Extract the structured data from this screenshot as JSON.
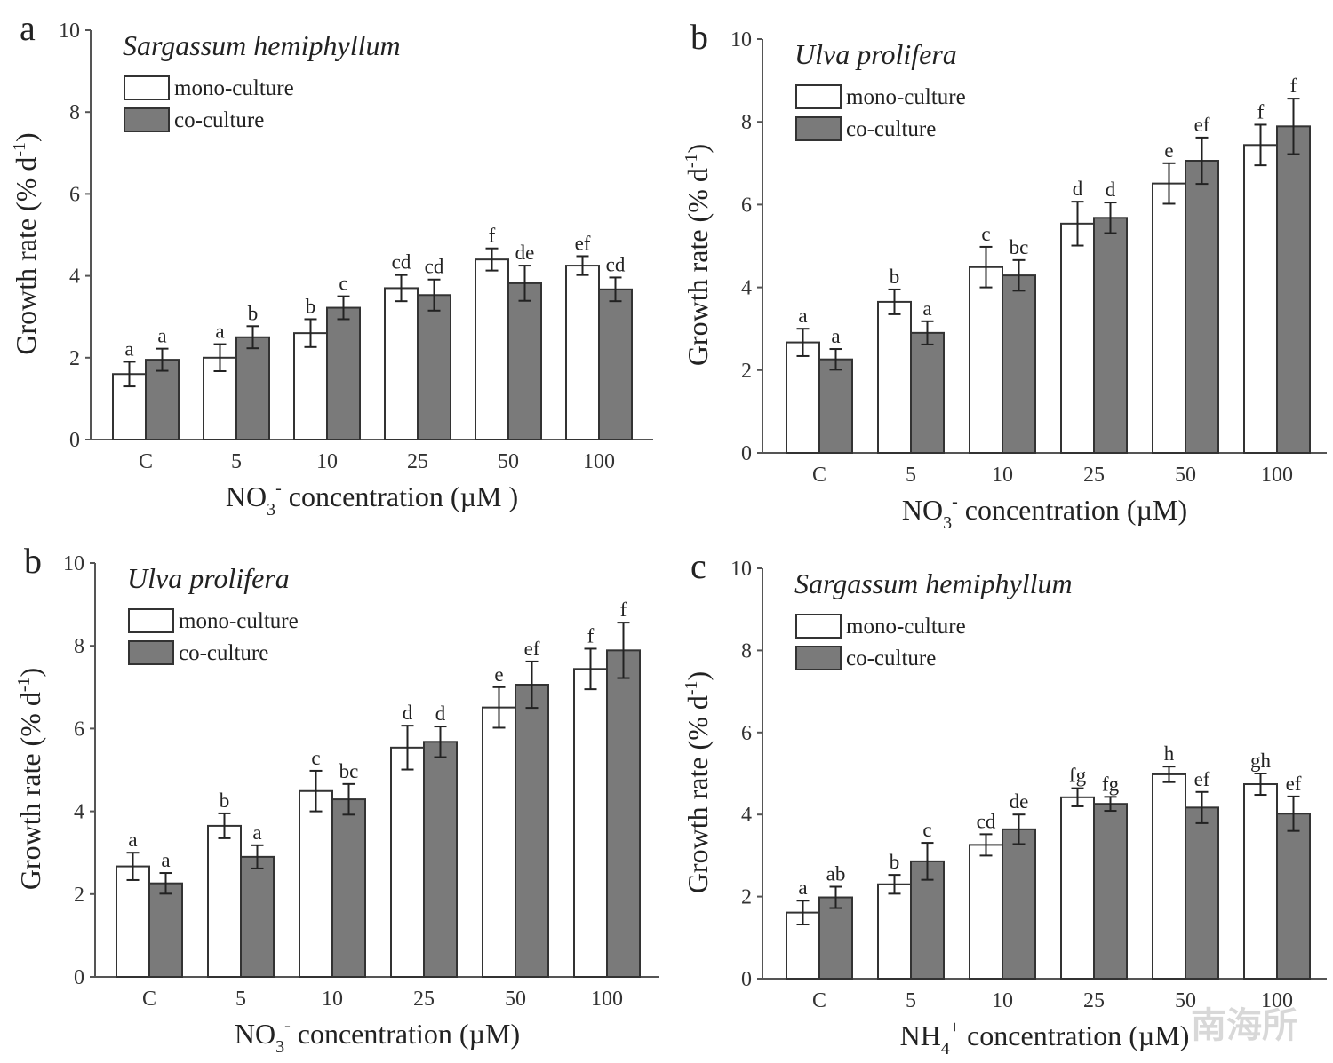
{
  "chart_data": [
    {
      "type": "bar",
      "panel": "a",
      "title": "Sargassum hemiphyllum",
      "xlabel": "NO3- concentration (µM )",
      "xlabel_parts": {
        "base": "NO",
        "sub": "3",
        "sup": "-",
        "rest": " concentration (µM )"
      },
      "ylabel": "Growth rate (% d-1)",
      "ylim": [
        0,
        10
      ],
      "yticks": [
        0,
        2,
        4,
        6,
        8,
        10
      ],
      "categories": [
        "C",
        "5",
        "10",
        "25",
        "50",
        "100"
      ],
      "legend_position": "top-left",
      "series": [
        {
          "name": "mono-culture",
          "color": "#ffffff",
          "values": [
            1.6,
            2.0,
            2.6,
            3.7,
            4.4,
            4.25
          ],
          "errors": [
            0.3,
            0.33,
            0.34,
            0.32,
            0.27,
            0.23
          ],
          "letters": [
            "a",
            "a",
            "b",
            "cd",
            "f",
            "ef"
          ]
        },
        {
          "name": "co-culture",
          "color": "#7a7a7a",
          "values": [
            1.95,
            2.5,
            3.22,
            3.53,
            3.82,
            3.67
          ],
          "errors": [
            0.27,
            0.27,
            0.28,
            0.38,
            0.43,
            0.29
          ],
          "letters": [
            "a",
            "b",
            "c",
            "cd",
            "de",
            "cd"
          ]
        }
      ]
    },
    {
      "type": "bar",
      "panel": "b",
      "title": "Ulva prolifera",
      "xlabel": "NO3- concentration (µM)",
      "xlabel_parts": {
        "base": "NO",
        "sub": "3",
        "sup": "-",
        "rest": " concentration (µM)"
      },
      "ylabel": "Growth rate (% d-1)",
      "ylim": [
        0,
        10
      ],
      "yticks": [
        0,
        2,
        4,
        6,
        8,
        10
      ],
      "categories": [
        "C",
        "5",
        "10",
        "25",
        "50",
        "100"
      ],
      "legend_position": "top-left",
      "series": [
        {
          "name": "mono-culture",
          "color": "#ffffff",
          "values": [
            2.67,
            3.65,
            4.49,
            5.54,
            6.51,
            7.44
          ],
          "errors": [
            0.33,
            0.3,
            0.49,
            0.53,
            0.49,
            0.49
          ],
          "letters": [
            "a",
            "b",
            "c",
            "d",
            "e",
            "f"
          ]
        },
        {
          "name": "co-culture",
          "color": "#7a7a7a",
          "values": [
            2.26,
            2.9,
            4.29,
            5.68,
            7.06,
            7.89
          ],
          "errors": [
            0.25,
            0.28,
            0.37,
            0.37,
            0.56,
            0.67
          ],
          "letters": [
            "a",
            "a",
            "bc",
            "d",
            "ef",
            "f"
          ]
        }
      ]
    },
    {
      "type": "bar",
      "panel": "b",
      "title": "Ulva prolifera",
      "xlabel": "NO3- concentration (µM)",
      "xlabel_parts": {
        "base": "NO",
        "sub": "3",
        "sup": "-",
        "rest": " concentration (µM)"
      },
      "ylabel": "Growth rate (% d-1)",
      "ylim": [
        0,
        10
      ],
      "yticks": [
        0,
        2,
        4,
        6,
        8,
        10
      ],
      "categories": [
        "C",
        "5",
        "10",
        "25",
        "50",
        "100"
      ],
      "legend_position": "top-left",
      "series": [
        {
          "name": "mono-culture",
          "color": "#ffffff",
          "values": [
            2.67,
            3.65,
            4.49,
            5.54,
            6.51,
            7.44
          ],
          "errors": [
            0.33,
            0.3,
            0.49,
            0.53,
            0.49,
            0.49
          ],
          "letters": [
            "a",
            "b",
            "c",
            "d",
            "e",
            "f"
          ]
        },
        {
          "name": "co-culture",
          "color": "#7a7a7a",
          "values": [
            2.26,
            2.9,
            4.29,
            5.68,
            7.06,
            7.89
          ],
          "errors": [
            0.25,
            0.28,
            0.37,
            0.37,
            0.56,
            0.67
          ],
          "letters": [
            "a",
            "a",
            "bc",
            "d",
            "ef",
            "f"
          ]
        }
      ]
    },
    {
      "type": "bar",
      "panel": "c",
      "title": "Sargassum hemiphyllum",
      "xlabel": "NH4+ concentration (µM)",
      "xlabel_parts": {
        "base": "NH",
        "sub": "4",
        "sup": "+",
        "rest": " concentration (µM)"
      },
      "ylabel": "Growth rate (% d-1)",
      "ylim": [
        0,
        10
      ],
      "yticks": [
        0,
        2,
        4,
        6,
        8,
        10
      ],
      "categories": [
        "C",
        "5",
        "10",
        "25",
        "50",
        "100"
      ],
      "legend_position": "top-left",
      "series": [
        {
          "name": "mono-culture",
          "color": "#ffffff",
          "values": [
            1.61,
            2.3,
            3.26,
            4.42,
            4.98,
            4.74
          ],
          "errors": [
            0.29,
            0.23,
            0.26,
            0.22,
            0.19,
            0.26
          ],
          "letters": [
            "a",
            "b",
            "cd",
            "fg",
            "h",
            "gh"
          ]
        },
        {
          "name": "co-culture",
          "color": "#7a7a7a",
          "values": [
            1.98,
            2.86,
            3.64,
            4.26,
            4.17,
            4.02
          ],
          "errors": [
            0.26,
            0.45,
            0.36,
            0.17,
            0.38,
            0.42
          ],
          "letters": [
            "ab",
            "c",
            "de",
            "fg",
            "ef",
            "ef"
          ]
        }
      ]
    }
  ],
  "watermark": "南海所"
}
